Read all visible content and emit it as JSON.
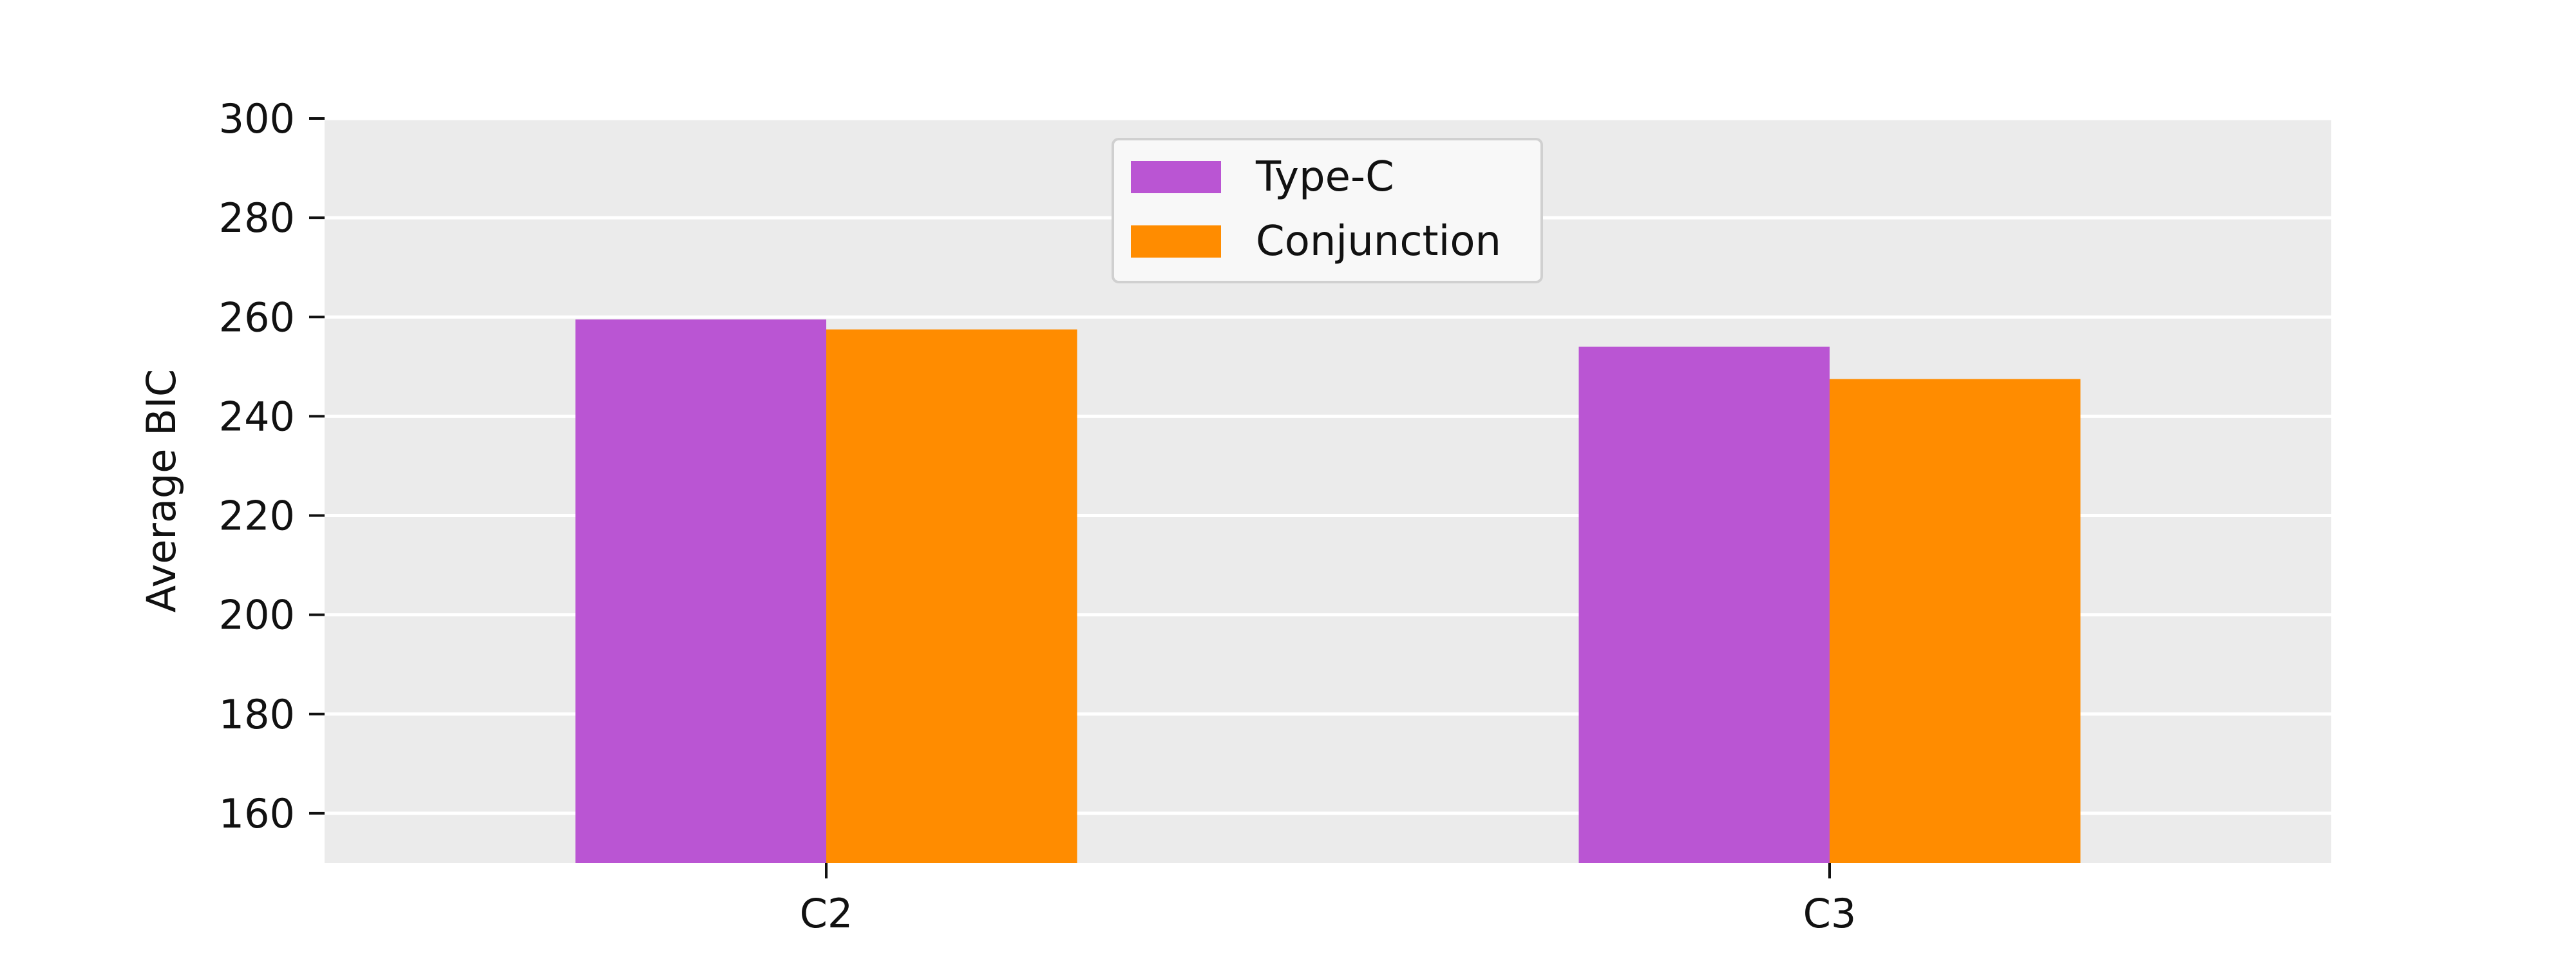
{
  "chart_data": {
    "type": "bar",
    "title": "",
    "xlabel": "",
    "ylabel": "Average BIC",
    "categories": [
      "C2",
      "C3"
    ],
    "series": [
      {
        "name": "Type-C",
        "values": [
          259.5,
          254.0
        ]
      },
      {
        "name": "Conjunction",
        "values": [
          257.5,
          247.5
        ]
      }
    ],
    "ylim": [
      150,
      300
    ],
    "yticks": [
      160,
      180,
      200,
      220,
      240,
      260,
      280,
      300
    ],
    "grid": true,
    "legend_position": "top-center",
    "colors": {
      "Type-C": "#ba55d3",
      "Conjunction": "#ff8c00",
      "plot_background": "#ebebeb",
      "grid": "#ffffff"
    }
  }
}
